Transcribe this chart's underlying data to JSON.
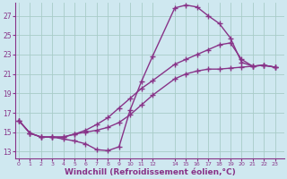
{
  "background_color": "#cfe8f0",
  "grid_color": "#a8ccc8",
  "line_color": "#883388",
  "marker": "+",
  "markersize": 4,
  "linewidth": 1.0,
  "xlabel": "Windchill (Refroidissement éolien,°C)",
  "xlabel_fontsize": 6.5,
  "yticks": [
    13,
    15,
    17,
    19,
    21,
    23,
    25,
    27
  ],
  "xticks": [
    0,
    1,
    2,
    3,
    4,
    5,
    6,
    7,
    8,
    9,
    10,
    11,
    12,
    14,
    15,
    16,
    17,
    18,
    19,
    20,
    21,
    22,
    23
  ],
  "xlim": [
    -0.3,
    23.8
  ],
  "ylim": [
    12.3,
    28.3
  ],
  "series1": [
    [
      0,
      16.2
    ],
    [
      1,
      14.9
    ],
    [
      2,
      14.5
    ],
    [
      3,
      14.5
    ],
    [
      4,
      14.3
    ],
    [
      5,
      14.1
    ],
    [
      6,
      13.8
    ],
    [
      7,
      13.2
    ],
    [
      8,
      13.1
    ],
    [
      9,
      13.5
    ],
    [
      10,
      17.3
    ],
    [
      11,
      20.2
    ],
    [
      12,
      22.8
    ],
    [
      14,
      27.8
    ],
    [
      15,
      28.1
    ],
    [
      16,
      27.9
    ],
    [
      17,
      27.0
    ],
    [
      18,
      26.2
    ],
    [
      19,
      24.7
    ],
    [
      20,
      22.2
    ],
    [
      21,
      21.8
    ],
    [
      22,
      21.9
    ],
    [
      23,
      21.7
    ]
  ],
  "series2": [
    [
      0,
      16.2
    ],
    [
      1,
      14.9
    ],
    [
      2,
      14.5
    ],
    [
      3,
      14.5
    ],
    [
      4,
      14.5
    ],
    [
      5,
      14.8
    ],
    [
      6,
      15.2
    ],
    [
      7,
      15.8
    ],
    [
      8,
      16.5
    ],
    [
      9,
      17.5
    ],
    [
      10,
      18.5
    ],
    [
      11,
      19.5
    ],
    [
      12,
      20.3
    ],
    [
      14,
      22.0
    ],
    [
      15,
      22.5
    ],
    [
      16,
      23.0
    ],
    [
      17,
      23.5
    ],
    [
      18,
      24.0
    ],
    [
      19,
      24.2
    ],
    [
      20,
      22.5
    ],
    [
      21,
      21.8
    ],
    [
      22,
      21.9
    ],
    [
      23,
      21.7
    ]
  ],
  "series3": [
    [
      0,
      16.2
    ],
    [
      1,
      14.9
    ],
    [
      2,
      14.5
    ],
    [
      3,
      14.5
    ],
    [
      4,
      14.5
    ],
    [
      5,
      14.8
    ],
    [
      6,
      15.0
    ],
    [
      7,
      15.2
    ],
    [
      8,
      15.5
    ],
    [
      9,
      16.0
    ],
    [
      10,
      16.8
    ],
    [
      11,
      17.8
    ],
    [
      12,
      18.8
    ],
    [
      14,
      20.5
    ],
    [
      15,
      21.0
    ],
    [
      16,
      21.3
    ],
    [
      17,
      21.5
    ],
    [
      18,
      21.5
    ],
    [
      19,
      21.6
    ],
    [
      20,
      21.7
    ],
    [
      21,
      21.8
    ],
    [
      22,
      21.9
    ],
    [
      23,
      21.7
    ]
  ]
}
